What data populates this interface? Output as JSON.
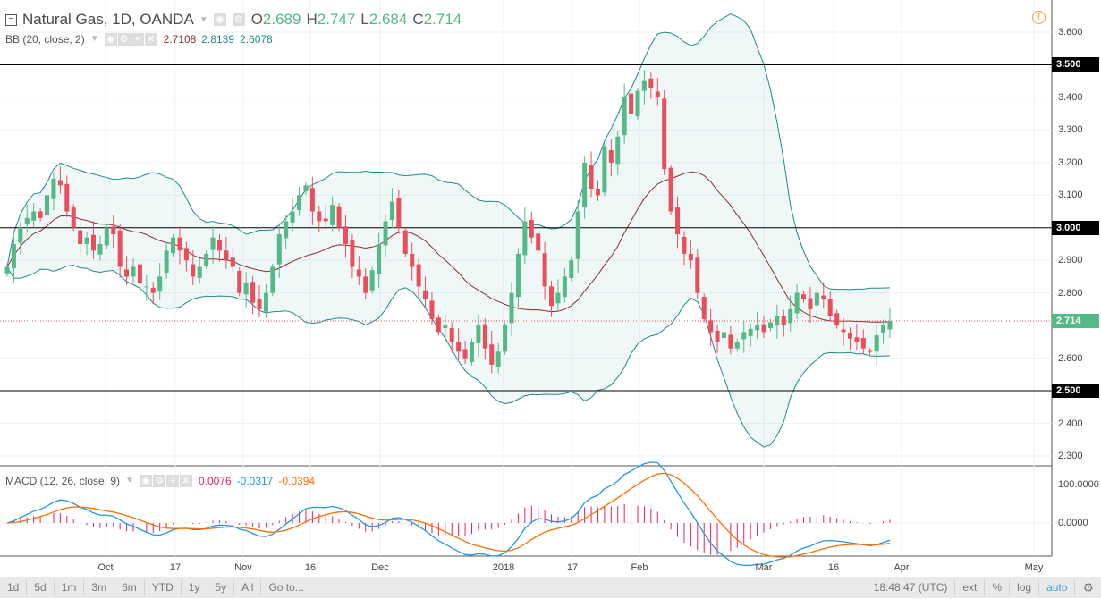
{
  "header": {
    "symbol": "Natural Gas, 1D, OANDA",
    "o_label": "O",
    "o": "2.689",
    "h_label": "H",
    "h": "2.747",
    "l_label": "L",
    "l": "2.684",
    "c_label": "C",
    "c": "2.714"
  },
  "bb": {
    "label": "BB (20, close, 2)",
    "basis": "2.7108",
    "upper": "2.8139",
    "lower": "2.6078"
  },
  "macd": {
    "label": "MACD (12, 26, close, 9)",
    "hist": "0.0076",
    "macd": "-0.0317",
    "signal": "-0.0394"
  },
  "price_axis": [
    "3.600",
    "3.400",
    "3.300",
    "3.200",
    "3.100",
    "2.900",
    "2.800",
    "2.600",
    "2.400",
    "2.300"
  ],
  "highlight_levels": [
    "3.500",
    "3.000",
    "2.500"
  ],
  "last_price": "2.714",
  "macd_axis": [
    "100.0000",
    "0.0000"
  ],
  "time_axis": [
    "Oct",
    "17",
    "Nov",
    "16",
    "Dec",
    "2018",
    "17",
    "Feb",
    "Mar",
    "16",
    "Apr",
    "May"
  ],
  "toolbar": {
    "ranges": [
      "1d",
      "5d",
      "1m",
      "3m",
      "6m",
      "YTD",
      "1y",
      "5y",
      "All"
    ],
    "goto": "Go to...",
    "time": "18:48:47 (UTC)",
    "ext": "ext",
    "pct": "%",
    "log": "log",
    "auto": "auto"
  },
  "colors": {
    "up": "#53b987",
    "down": "#eb4d5c",
    "bb": "#1f8a8a",
    "basis": "#8b2e2e",
    "macd": "#2196f3",
    "signal": "#ff6d00",
    "hist": "#e91e63"
  },
  "chart_data": {
    "type": "candlestick",
    "closes": [
      2.88,
      2.95,
      3.0,
      3.03,
      3.05,
      3.03,
      3.1,
      3.15,
      3.13,
      3.05,
      3.0,
      2.95,
      2.97,
      2.93,
      2.95,
      3.0,
      2.98,
      2.88,
      2.85,
      2.88,
      2.83,
      2.82,
      2.8,
      2.85,
      2.93,
      2.97,
      2.93,
      2.9,
      2.85,
      2.88,
      2.92,
      2.97,
      2.93,
      2.9,
      2.88,
      2.8,
      2.83,
      2.77,
      2.75,
      2.8,
      2.88,
      2.98,
      3.02,
      3.05,
      3.1,
      3.13,
      3.05,
      3.02,
      3.02,
      3.07,
      3.0,
      2.95,
      2.88,
      2.85,
      2.8,
      2.87,
      2.95,
      3.02,
      3.08,
      3.0,
      2.92,
      2.88,
      2.82,
      2.78,
      2.72,
      2.68,
      2.7,
      2.65,
      2.62,
      2.6,
      2.65,
      2.7,
      2.63,
      2.58,
      2.62,
      2.7,
      2.8,
      2.92,
      3.02,
      2.97,
      2.93,
      2.82,
      2.76,
      2.8,
      2.85,
      2.9,
      3.05,
      3.2,
      3.12,
      3.1,
      3.25,
      3.2,
      3.28,
      3.4,
      3.35,
      3.42,
      3.45,
      3.43,
      3.4,
      3.18,
      3.05,
      2.98,
      2.92,
      2.9,
      2.8,
      2.72,
      2.68,
      2.65,
      2.68,
      2.63,
      2.65,
      2.68,
      2.69,
      2.7,
      2.68,
      2.71,
      2.73,
      2.7,
      2.75,
      2.8,
      2.78,
      2.75,
      2.8,
      2.78,
      2.73,
      2.7,
      2.68,
      2.66,
      2.65,
      2.63,
      2.62,
      2.67,
      2.7,
      2.714
    ],
    "ylim": [
      2.3,
      3.6
    ]
  }
}
